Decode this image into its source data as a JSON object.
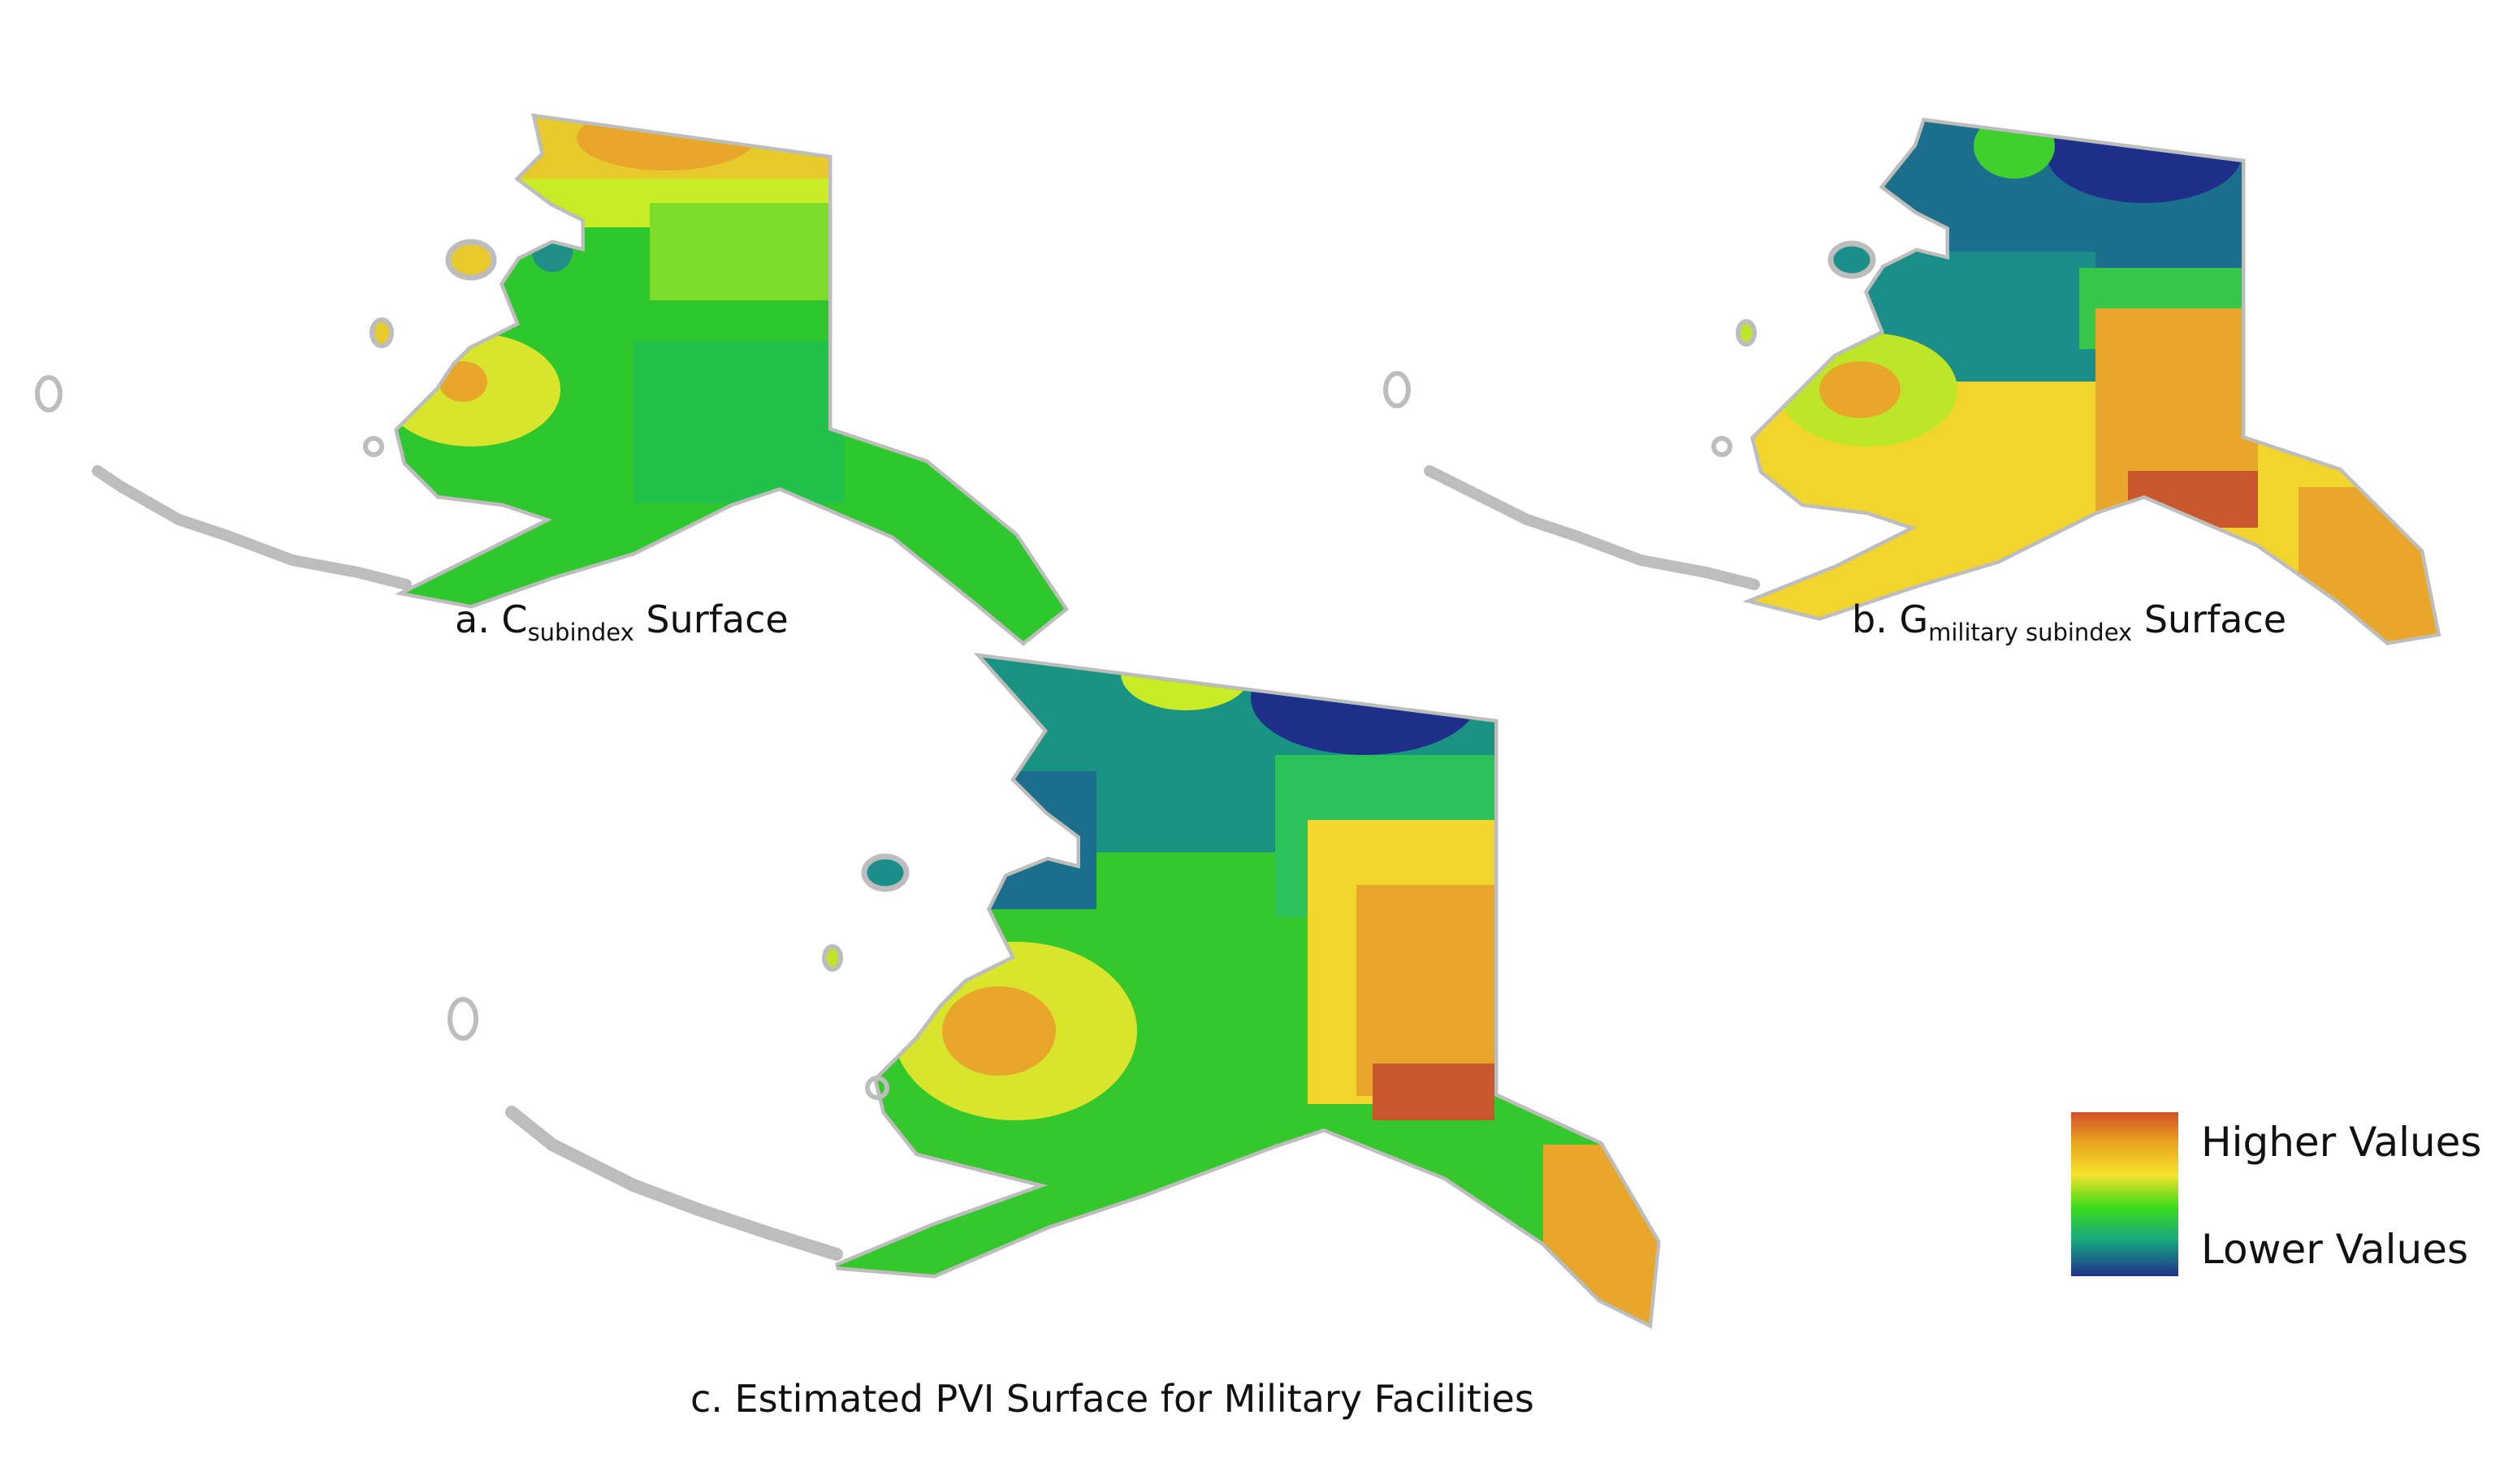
{
  "panels": [
    {
      "id": "a",
      "caption_prefix": "a. C",
      "caption_sub": "subindex",
      "caption_suffix": " Surface"
    },
    {
      "id": "b",
      "caption_prefix": "b. G",
      "caption_sub": "military subindex",
      "caption_suffix": " Surface"
    },
    {
      "id": "c",
      "caption": "c. Estimated PVI Surface for Military Facilities"
    }
  ],
  "legend": {
    "high_label": "Higher Values",
    "low_label": "Lower Values",
    "ramp_colors": [
      "#d24f2b",
      "#e9a31f",
      "#f6e12a",
      "#3ddc1c",
      "#17a880",
      "#1e2f8a"
    ]
  }
}
